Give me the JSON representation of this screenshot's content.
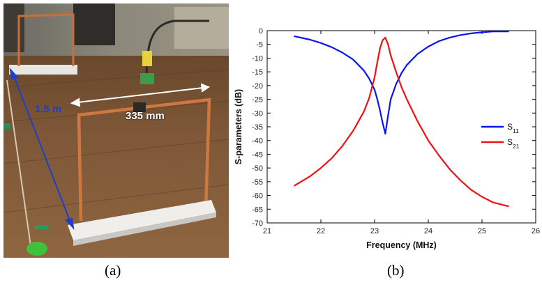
{
  "panel_a": {
    "caption": "(a)",
    "distance_label": "1.5 m",
    "span_label": "335 mm"
  },
  "panel_b": {
    "caption": "(b)"
  },
  "colors": {
    "s11": "#0a14f0",
    "s21": "#f01010",
    "distance_arrow": "#1d3fc8",
    "span_arrow": "#ffffff",
    "copper": "#c8703a",
    "floor": "#7a5634"
  },
  "chart_data": {
    "type": "line",
    "title": "",
    "xlabel": "Frequency (MHz)",
    "ylabel": "S-parameters (dB)",
    "xlim": [
      21,
      26
    ],
    "ylim": [
      -70,
      0
    ],
    "x_ticks": [
      21,
      22,
      23,
      24,
      25,
      26
    ],
    "y_ticks": [
      0,
      -5,
      -10,
      -15,
      -20,
      -25,
      -30,
      -35,
      -40,
      -45,
      -50,
      -55,
      -60,
      -65,
      -70
    ],
    "grid": false,
    "legend_position": "right",
    "series": [
      {
        "name": "S11",
        "name_main": "S",
        "name_sub": "11",
        "color": "#0a14f0",
        "x": [
          21.5,
          21.8,
          22.0,
          22.2,
          22.4,
          22.6,
          22.8,
          22.9,
          23.0,
          23.05,
          23.1,
          23.15,
          23.2,
          23.25,
          23.3,
          23.4,
          23.5,
          23.6,
          23.8,
          24.0,
          24.2,
          24.4,
          24.6,
          24.8,
          25.0,
          25.2,
          25.5
        ],
        "values": [
          -2,
          -3.3,
          -4.5,
          -6,
          -8,
          -10.5,
          -14.5,
          -17.5,
          -21.5,
          -25,
          -29,
          -33.5,
          -37.5,
          -31,
          -25,
          -19.5,
          -15.5,
          -12.5,
          -8.5,
          -5.8,
          -3.8,
          -2.5,
          -1.6,
          -1,
          -0.6,
          -0.3,
          -0.3
        ]
      },
      {
        "name": "S21",
        "name_main": "S",
        "name_sub": "21",
        "color": "#f01010",
        "x": [
          21.5,
          21.8,
          22.0,
          22.2,
          22.4,
          22.6,
          22.8,
          22.9,
          23.0,
          23.05,
          23.1,
          23.15,
          23.2,
          23.25,
          23.3,
          23.4,
          23.5,
          23.6,
          23.8,
          24.0,
          24.2,
          24.4,
          24.6,
          24.8,
          25.0,
          25.2,
          25.5
        ],
        "values": [
          -56.5,
          -53,
          -50,
          -46.5,
          -42,
          -36.5,
          -29.5,
          -24.5,
          -17,
          -11.5,
          -6.5,
          -3.5,
          -2.5,
          -5,
          -9,
          -15,
          -20.5,
          -25,
          -33,
          -40,
          -45.5,
          -50.5,
          -54.5,
          -58,
          -60.5,
          -62.5,
          -64
        ]
      }
    ]
  }
}
